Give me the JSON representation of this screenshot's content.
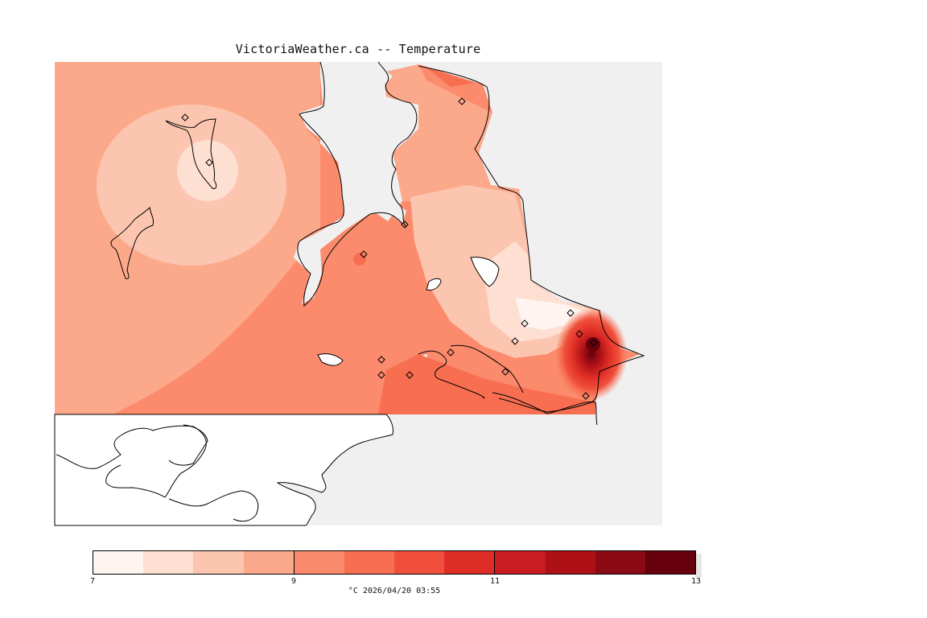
{
  "title": "VictoriaWeather.ca -- Temperature",
  "legend": {
    "colors": [
      "#fff5f0",
      "#fee0d2",
      "#fcc5b0",
      "#fca98b",
      "#fb8b6c",
      "#f86e51",
      "#f0503b",
      "#de2d26",
      "#c91c20",
      "#ad1116",
      "#8a0b13",
      "#67000d"
    ],
    "ticks": [
      {
        "label": "7",
        "value": 7
      },
      {
        "label": "9",
        "value": 9
      },
      {
        "label": "11",
        "value": 11
      },
      {
        "label": "13",
        "value": 13
      }
    ],
    "min": 7,
    "max": 13
  },
  "caption": "°C  2026/04/20 03:55",
  "map": {
    "stations": 16,
    "land_color": "#f0f0f0",
    "water_color": "#ffffff",
    "coast_color": "#000000"
  }
}
